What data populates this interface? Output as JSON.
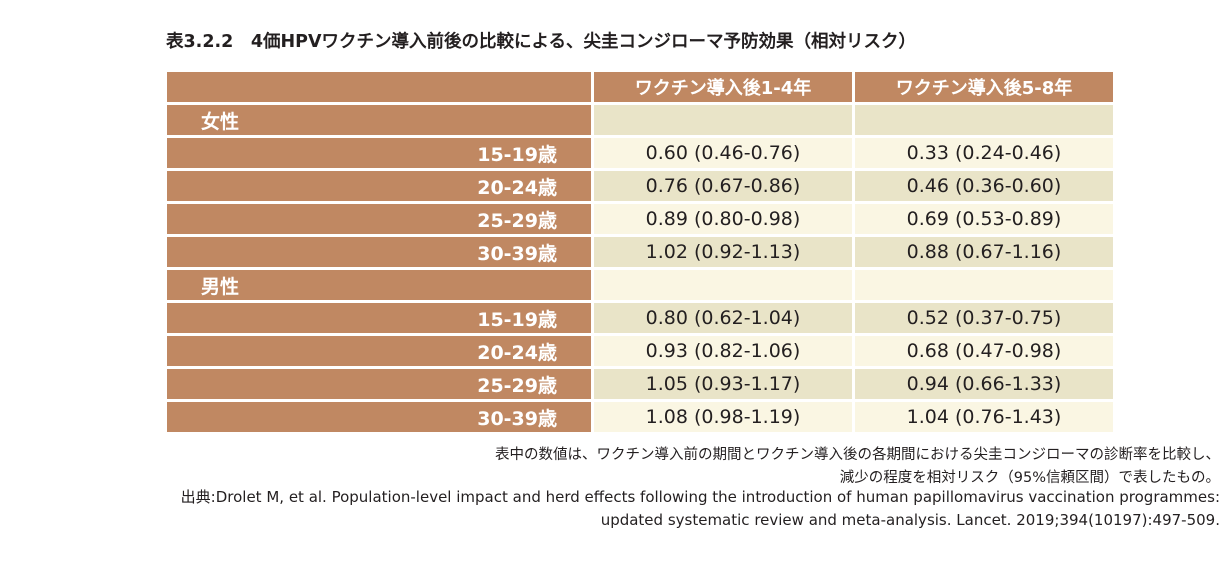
{
  "title": "表3.2.2　4価HPVワクチン導入前後の比較による、尖圭コンジローマ予防効果（相対リスク）",
  "table": {
    "headers": [
      "",
      "ワクチン導入後1-4年",
      "ワクチン導入後5-8年"
    ],
    "groups": [
      {
        "label": "女性",
        "rows": [
          {
            "age": "15-19歳",
            "v1": "0.60 (0.46-0.76)",
            "v2": "0.33 (0.24-0.46)"
          },
          {
            "age": "20-24歳",
            "v1": "0.76 (0.67-0.86)",
            "v2": "0.46 (0.36-0.60)"
          },
          {
            "age": "25-29歳",
            "v1": "0.89 (0.80-0.98)",
            "v2": "0.69 (0.53-0.89)"
          },
          {
            "age": "30-39歳",
            "v1": "1.02 (0.92-1.13)",
            "v2": "0.88 (0.67-1.16)"
          }
        ]
      },
      {
        "label": "男性",
        "rows": [
          {
            "age": "15-19歳",
            "v1": "0.80 (0.62-1.04)",
            "v2": "0.52 (0.37-0.75)"
          },
          {
            "age": "20-24歳",
            "v1": "0.93 (0.82-1.06)",
            "v2": "0.68 (0.47-0.98)"
          },
          {
            "age": "25-29歳",
            "v1": "1.05 (0.93-1.17)",
            "v2": "0.94 (0.66-1.33)"
          },
          {
            "age": "30-39歳",
            "v1": "1.08 (0.98-1.19)",
            "v2": "1.04 (0.76-1.43)"
          }
        ]
      }
    ]
  },
  "notes": [
    "表中の数値は、ワクチン導入前の期間とワクチン導入後の各期間における尖圭コンジローマの診断率を比較し、",
    "減少の程度を相対リスク（95%信頼区間）で表したもの。"
  ],
  "source": [
    "出典:Drolet M, et al. Population-level impact and herd effects following the introduction of human papillomavirus vaccination programmes:",
    "updated systematic review and meta-analysis. Lancet. 2019;394(10197):497-509."
  ],
  "colors": {
    "header_brown": "#c08862",
    "cell_light": "#faf6e3",
    "cell_dark": "#e9e4c8"
  }
}
